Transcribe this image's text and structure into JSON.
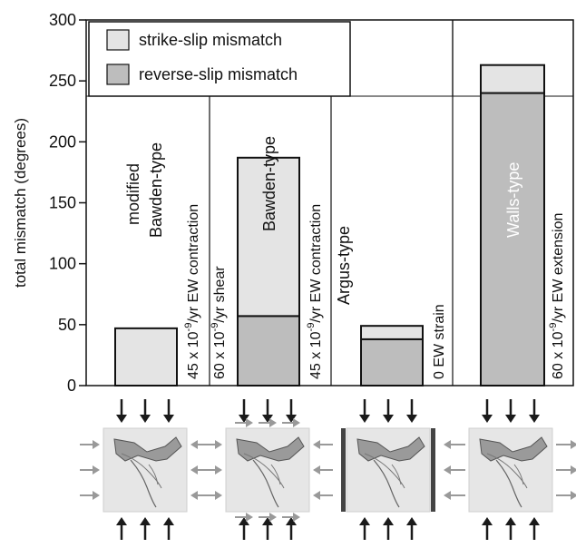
{
  "chart_data": {
    "type": "bar",
    "ylabel": "total mismatch (degrees)",
    "ylim": [
      0,
      300
    ],
    "yticks": [
      "0",
      "50",
      "100",
      "150",
      "200",
      "250",
      "300"
    ],
    "legend": {
      "placement": "top-left",
      "items": [
        {
          "label": "strike-slip mismatch",
          "color": "#e4e4e4"
        },
        {
          "label": "reverse-slip mismatch",
          "color": "#bdbdbd"
        }
      ]
    },
    "panels": [
      {
        "id": "p1",
        "model": [
          "modified",
          "Bawden-type"
        ],
        "bottom_label": "",
        "right_label": "45 x 10-9/yr EW contraction",
        "reverse_slip": 0,
        "total": 47,
        "boundary": "contraction"
      },
      {
        "id": "p2",
        "model": [
          "Bawden-type"
        ],
        "bottom_label": "",
        "right_label": "45 x 10-9/yr EW contraction",
        "left_label": "60 x 10-9/yr shear",
        "reverse_slip": 57,
        "total": 187,
        "boundary": "contraction-shear"
      },
      {
        "id": "p3",
        "model": [
          "Argus-type"
        ],
        "bottom_label": "",
        "right_label": "0 EW strain",
        "reverse_slip": 38,
        "total": 49,
        "boundary": "fixed-walls"
      },
      {
        "id": "p4",
        "model": [
          "Walls-type"
        ],
        "bottom_label": "",
        "right_label": "60 x 10-9/yr EW extension",
        "reverse_slip": 240,
        "total": 263,
        "boundary": "extension"
      }
    ],
    "colors": {
      "strike_slip": "#e4e4e4",
      "reverse_slip": "#bdbdbd",
      "arrow_dark": "#1a1a1a",
      "arrow_gray": "#999999",
      "map_bg": "#e6e6e6"
    },
    "superscript": "-9"
  }
}
